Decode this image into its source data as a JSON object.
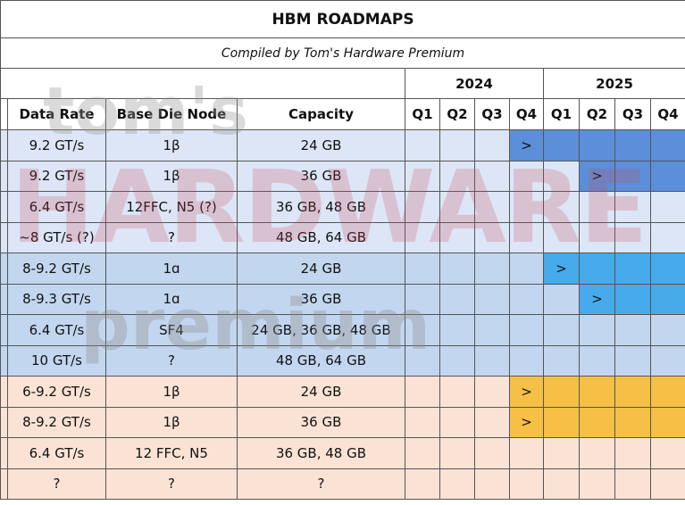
{
  "header": {
    "title": "HBM ROADMAPS",
    "subtitle": "Compiled by Tom's Hardware Premium"
  },
  "watermark": {
    "line1": "tom's",
    "line2": "HARDWARE",
    "line3": "premium"
  },
  "table": {
    "years": [
      "2024",
      "2025"
    ],
    "columns": [
      "Data Rate",
      "Base Die Node",
      "Capacity"
    ],
    "quarters": [
      "Q1",
      "Q2",
      "Q3",
      "Q4",
      "Q1",
      "Q2",
      "Q3",
      "Q4"
    ],
    "rows": [
      {
        "data_rate": "9.2 GT/s",
        "base_die_node": "1β",
        "capacity": "24 GB",
        "band": "#dce6f6",
        "fill": "#5b8fd9",
        "start": 3,
        "marker": ">"
      },
      {
        "data_rate": "9.2 GT/s",
        "base_die_node": "1β",
        "capacity": "36 GB",
        "band": "#dce6f6",
        "fill": "#5b8fd9",
        "start": 5,
        "marker": ">"
      },
      {
        "data_rate": "6.4 GT/s",
        "base_die_node": "12FFC, N5 (?)",
        "capacity": "36 GB, 48 GB",
        "band": "#dce6f6"
      },
      {
        "data_rate": "~8 GT/s (?)",
        "base_die_node": "?",
        "capacity": "48 GB, 64 GB",
        "band": "#dce6f6"
      },
      {
        "data_rate": "8-9.2  GT/s",
        "base_die_node": "1ɑ",
        "capacity": "24 GB",
        "band": "#c3d6ef",
        "fill": "#47aaea",
        "start": 4,
        "marker": ">"
      },
      {
        "data_rate": "8-9.3 GT/s",
        "base_die_node": "1ɑ",
        "capacity": "36 GB",
        "band": "#c3d6ef",
        "fill": "#47aaea",
        "start": 5,
        "marker": ">"
      },
      {
        "data_rate": "6.4 GT/s",
        "base_die_node": "SF4",
        "capacity": "24 GB, 36 GB, 48 GB",
        "band": "#c3d6ef"
      },
      {
        "data_rate": "10 GT/s",
        "base_die_node": "?",
        "capacity": "48 GB, 64 GB",
        "band": "#c3d6ef"
      },
      {
        "data_rate": "6-9.2  GT/s",
        "base_die_node": "1β",
        "capacity": "24 GB",
        "band": "#fae3d5",
        "fill": "#f6bf45",
        "start": 3,
        "marker": ">"
      },
      {
        "data_rate": "8-9.2 GT/s",
        "base_die_node": "1β",
        "capacity": "36 GB",
        "band": "#fae3d5",
        "fill": "#f6bf45",
        "start": 3,
        "marker": ">"
      },
      {
        "data_rate": "6.4 GT/s",
        "base_die_node": "12 FFC, N5",
        "capacity": "36 GB, 48 GB",
        "band": "#fae3d5"
      },
      {
        "data_rate": "?",
        "base_die_node": "?",
        "capacity": "?",
        "band": "#fae3d5"
      }
    ]
  }
}
